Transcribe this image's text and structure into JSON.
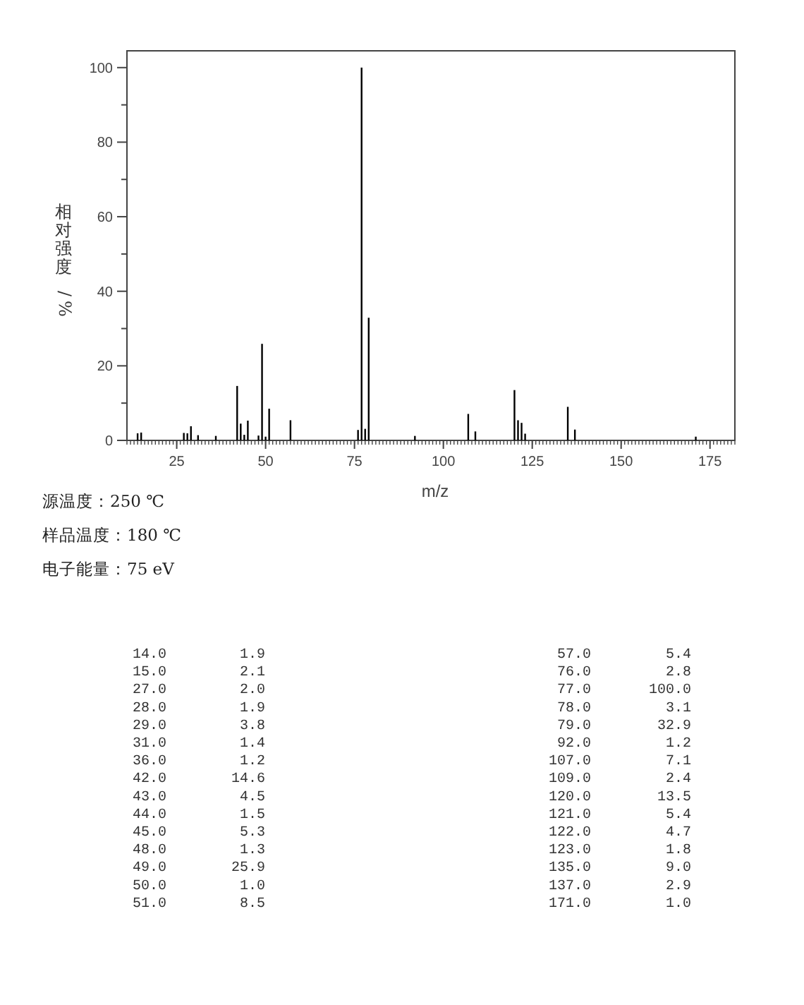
{
  "chart_data": {
    "type": "bar",
    "xlabel": "m/z",
    "ylabel": "相对强度/%",
    "color": "#000000",
    "x": [
      14,
      15,
      27,
      28,
      29,
      31,
      36,
      42,
      43,
      44,
      45,
      48,
      49,
      50,
      51,
      57,
      76,
      77,
      78,
      79,
      92,
      107,
      109,
      120,
      121,
      122,
      123,
      135,
      137,
      171
    ],
    "values": [
      1.9,
      2.1,
      2.0,
      1.9,
      3.8,
      1.4,
      1.2,
      14.6,
      4.5,
      1.5,
      5.3,
      1.3,
      25.9,
      1.0,
      8.5,
      5.4,
      2.8,
      100.0,
      3.1,
      32.9,
      1.2,
      7.1,
      2.4,
      13.5,
      5.4,
      4.7,
      1.8,
      9.0,
      2.9,
      1.0
    ],
    "xlim": [
      11,
      182
    ],
    "ylim": [
      0,
      104.5
    ],
    "xticks": [
      25,
      50,
      75,
      100,
      125,
      150,
      175
    ],
    "yticks": [
      0,
      {
        "value": 10,
        "label": null
      },
      20,
      {
        "value": 30,
        "label": null
      },
      40,
      {
        "value": 50,
        "label": null
      },
      60,
      {
        "value": 70,
        "label": null
      },
      80,
      {
        "value": 90,
        "label": null
      },
      100
    ],
    "annotations": [
      "源温度：250 ℃",
      "样品温度：180 ℃",
      "电子能量：75 eV",
      "14.0",
      "1.9",
      "15.0",
      "2.1",
      "27.0",
      "2.0",
      "28.0",
      "1.9",
      "29.0",
      "3.8",
      "31.0",
      "1.4",
      "36.0",
      "1.2",
      "42.0",
      "14.6",
      "43.0",
      "4.5",
      "44.0",
      "1.5",
      "45.0",
      "5.3",
      "48.0",
      "1.3",
      "49.0",
      "25.9",
      "50.0",
      "1.0",
      "51.0",
      "8.5",
      "57.0",
      "5.4",
      "76.0",
      "2.8",
      "77.0",
      "100.0",
      "78.0",
      "3.1",
      "79.0",
      "32.9",
      "92.0",
      "1.2",
      "107.0",
      "7.1",
      "109.0",
      "2.4",
      "120.0",
      "13.5",
      "121.0",
      "5.4",
      "122.0",
      "4.7",
      "123.0",
      "1.8",
      "135.0",
      "9.0",
      "137.0",
      "2.9",
      "171.0",
      "1.0"
    ]
  }
}
